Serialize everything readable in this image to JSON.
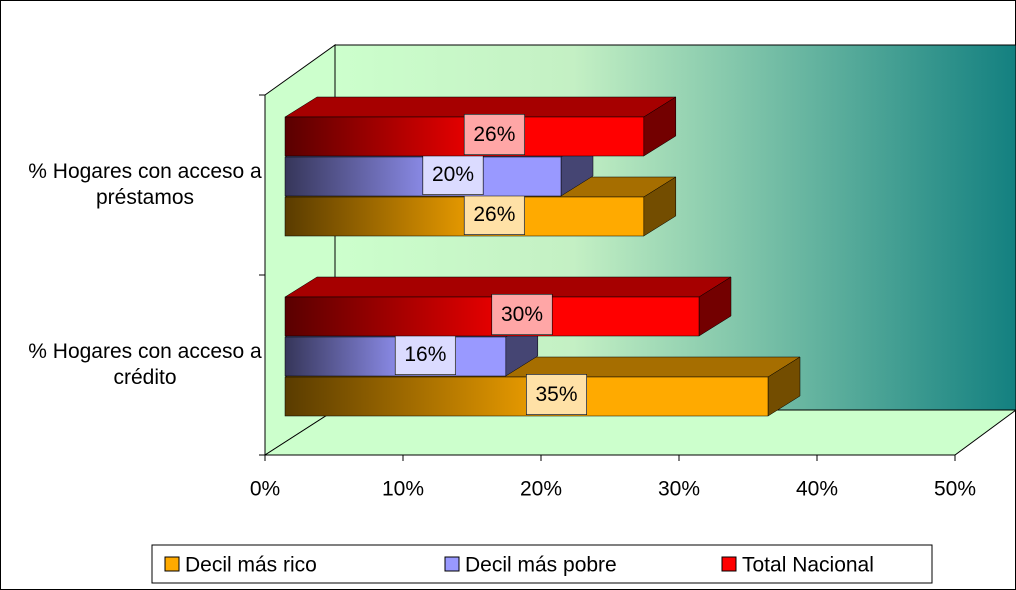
{
  "chart_data": {
    "type": "bar3d_horizontal",
    "categories": [
      "% Hogares con acceso a crédito",
      "% Hogares con acceso a préstamos"
    ],
    "series": [
      {
        "name": "Decil más rico",
        "color": "#ffaa00",
        "values": [
          35,
          26
        ],
        "value_labels": [
          "35%",
          "26%"
        ]
      },
      {
        "name": "Decil más pobre",
        "color": "#9999ff",
        "values": [
          16,
          20
        ],
        "value_labels": [
          "16%",
          "20%"
        ]
      },
      {
        "name": "Total Nacional",
        "color": "#ff0000",
        "values": [
          30,
          26
        ],
        "value_labels": [
          "30%",
          "26%"
        ]
      }
    ],
    "xlim": [
      0,
      50
    ],
    "xticks": [
      {
        "value": 0,
        "label": "0%"
      },
      {
        "value": 10,
        "label": "10%"
      },
      {
        "value": 20,
        "label": "20%"
      },
      {
        "value": 30,
        "label": "30%"
      },
      {
        "value": 40,
        "label": "40%"
      },
      {
        "value": 50,
        "label": "50%"
      }
    ],
    "legend": "bottom"
  }
}
